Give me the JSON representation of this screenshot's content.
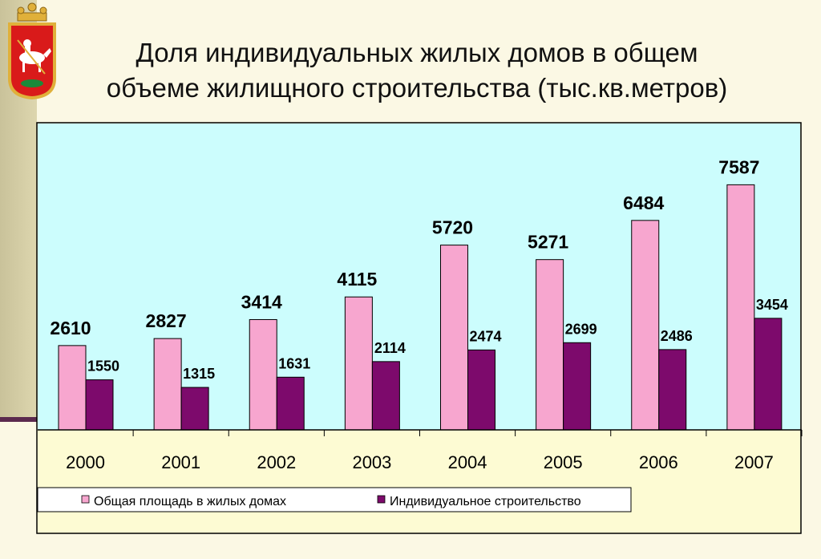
{
  "title": {
    "line1": "Доля индивидуальных жилых домов в общем",
    "line2": "объеме жилищного строительства (тыс.кв.метров)"
  },
  "emblem": {
    "icon": "moscow-oblast-coat-of-arms-icon"
  },
  "colors": {
    "series_a": "#f7a6cf",
    "series_b": "#7d0a6c",
    "plot_bg": "#ccfdfd",
    "frame_bg": "#fdfbd3",
    "slide_bg": "#fbf8e4"
  },
  "chart_data": {
    "type": "bar",
    "title": "Доля индивидуальных жилых домов в общем объеме жилищного строительства (тыс.кв.метров)",
    "categories": [
      "2000",
      "2001",
      "2002",
      "2003",
      "2004",
      "2005",
      "2006",
      "2007"
    ],
    "series": [
      {
        "name": "Общая площадь в жилых домах",
        "values": [
          2610,
          2827,
          3414,
          4115,
          5720,
          5271,
          6484,
          7587
        ]
      },
      {
        "name": "Индивидуальное строительство",
        "values": [
          1550,
          1315,
          1631,
          2114,
          2474,
          2699,
          2486,
          3454
        ]
      }
    ],
    "ylim": [
      0,
      8500
    ],
    "grid": false,
    "legend": "bottom",
    "xlabel": "",
    "ylabel": ""
  }
}
